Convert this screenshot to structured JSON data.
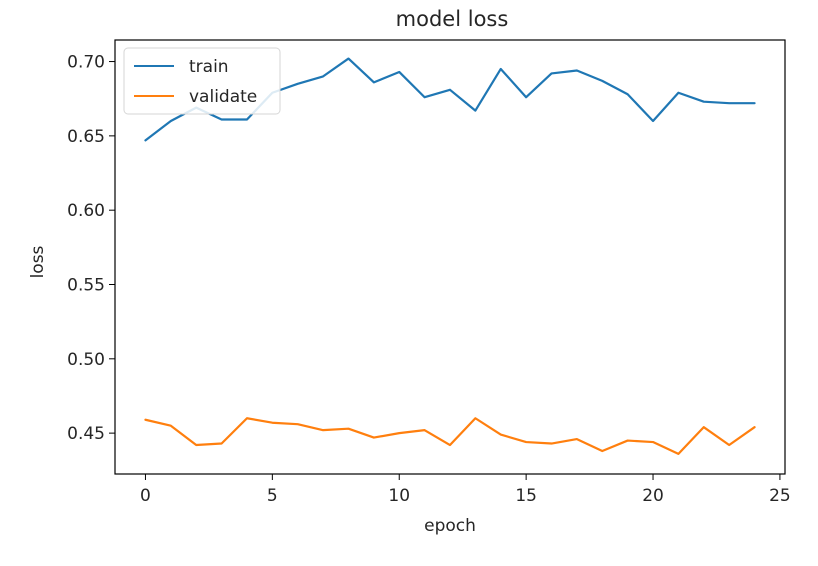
{
  "chart_data": {
    "type": "line",
    "title": "model loss",
    "xlabel": "epoch",
    "ylabel": "loss",
    "xlim": [
      -1.2,
      25.2
    ],
    "ylim": [
      0.4225,
      0.7145
    ],
    "x_ticks": [
      0,
      5,
      10,
      15,
      20,
      25
    ],
    "x_tick_labels": [
      "0",
      "5",
      "10",
      "15",
      "20",
      "25"
    ],
    "y_ticks": [
      0.45,
      0.5,
      0.55,
      0.6,
      0.65,
      0.7
    ],
    "y_tick_labels": [
      "0.45",
      "0.50",
      "0.55",
      "0.60",
      "0.65",
      "0.70"
    ],
    "grid": false,
    "legend_position": "top-left",
    "x": [
      0,
      1,
      2,
      3,
      4,
      5,
      6,
      7,
      8,
      9,
      10,
      11,
      12,
      13,
      14,
      15,
      16,
      17,
      18,
      19,
      20,
      21,
      22,
      23,
      24
    ],
    "series": [
      {
        "name": "train",
        "color": "#1f77b4",
        "values": [
          0.647,
          0.66,
          0.669,
          0.661,
          0.661,
          0.679,
          0.685,
          0.69,
          0.702,
          0.686,
          0.693,
          0.676,
          0.681,
          0.667,
          0.695,
          0.676,
          0.692,
          0.694,
          0.687,
          0.678,
          0.66,
          0.679,
          0.673,
          0.672,
          0.672
        ]
      },
      {
        "name": "validate",
        "color": "#ff7f0e",
        "values": [
          0.459,
          0.455,
          0.442,
          0.443,
          0.46,
          0.457,
          0.456,
          0.452,
          0.453,
          0.447,
          0.45,
          0.452,
          0.442,
          0.46,
          0.449,
          0.444,
          0.443,
          0.446,
          0.438,
          0.445,
          0.444,
          0.436,
          0.454,
          0.442,
          0.454
        ]
      }
    ]
  }
}
